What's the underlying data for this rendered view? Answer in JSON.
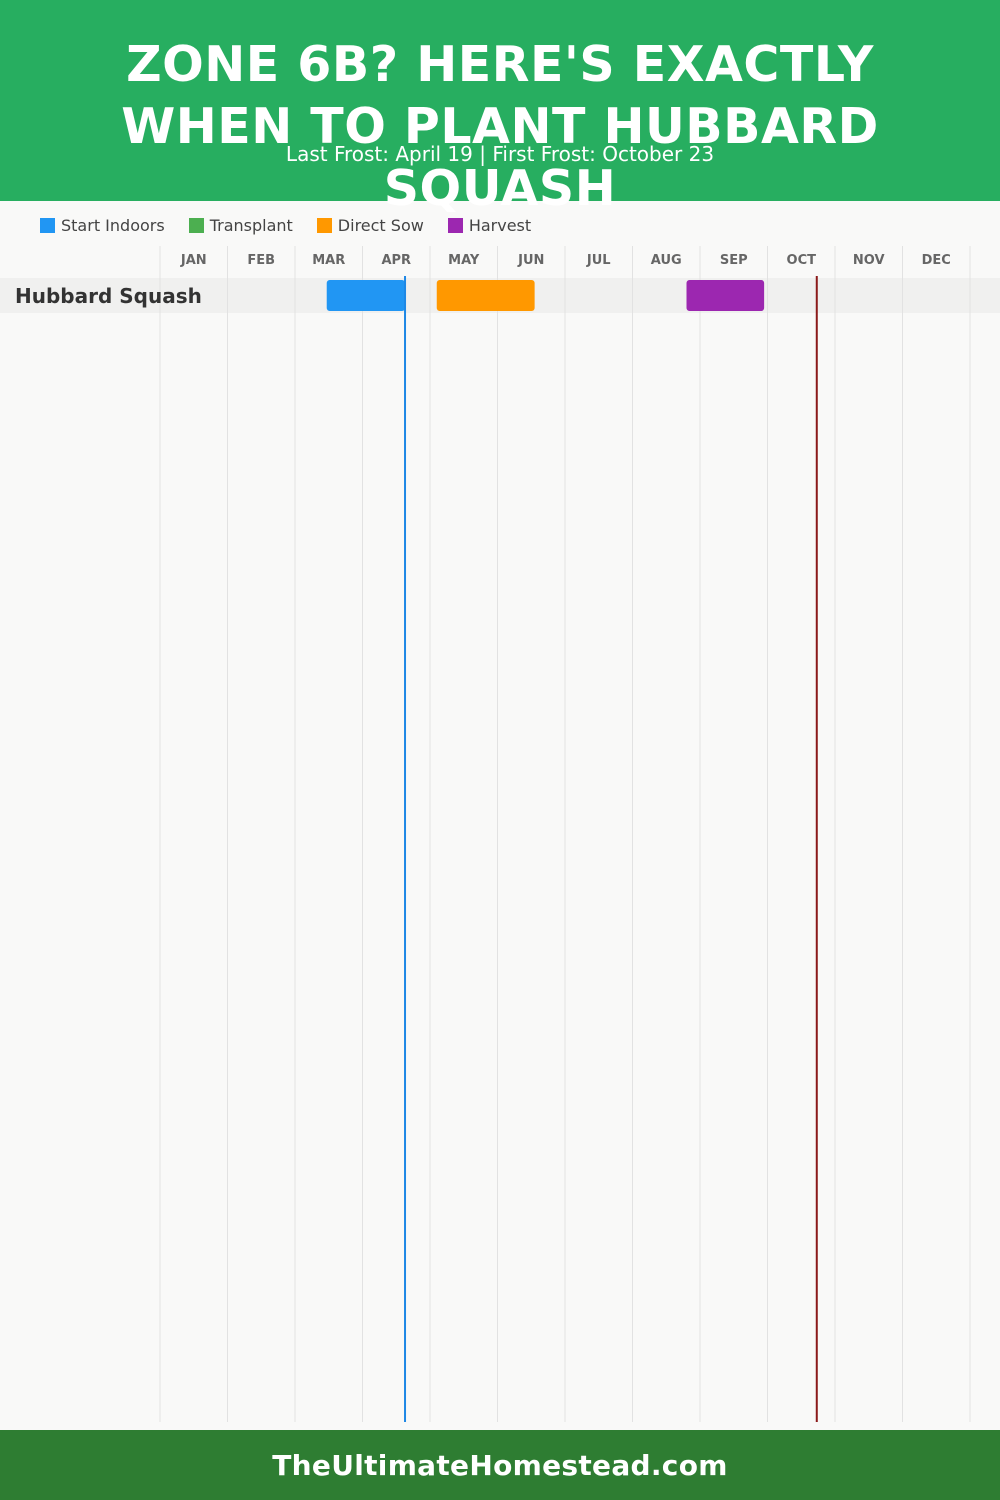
{
  "header": {
    "title_lines": [
      "ZONE 6B? HERE'S EXACTLY",
      "WHEN TO PLANT HUBBARD",
      "SQUASH"
    ],
    "subtitle": "Last Frost: April 19 | First Frost: October 23"
  },
  "footer": {
    "site": "TheUltimateHomestead.com"
  },
  "colors": {
    "header_bg": "#27ae60",
    "footer_bg": "#2e7d32",
    "last_frost_line": "#1e88e5",
    "first_frost_line": "#8b1a1a"
  },
  "chart_data": {
    "type": "gantt",
    "title": "ZONE 6B? HERE'S EXACTLY WHEN TO PLANT HUBBARD SQUASH",
    "subtitle": "Last Frost: April 19 | First Frost: October 23",
    "months": [
      "JAN",
      "FEB",
      "MAR",
      "APR",
      "MAY",
      "JUN",
      "JUL",
      "AUG",
      "SEP",
      "OCT",
      "NOV",
      "DEC"
    ],
    "legend": [
      {
        "name": "Start Indoors",
        "color": "#2196f3"
      },
      {
        "name": "Transplant",
        "color": "#4caf50"
      },
      {
        "name": "Direct Sow",
        "color": "#ff9800"
      },
      {
        "name": "Harvest",
        "color": "#9c27b0"
      }
    ],
    "legend_position": "top-left",
    "rows": [
      {
        "crop": "Hubbard Squash",
        "tasks": [
          {
            "type": "Start Indoors",
            "start": "Mar 8",
            "end": "Apr 19",
            "start_month": 2.47,
            "end_month": 3.63
          },
          {
            "type": "Direct Sow",
            "start": "May 3",
            "end": "Jun 17",
            "start_month": 4.1,
            "end_month": 5.55
          },
          {
            "type": "Harvest",
            "start": "Aug 25",
            "end": "Sep 29",
            "start_month": 7.8,
            "end_month": 8.95
          }
        ]
      }
    ],
    "frost_lines": [
      {
        "label": "Last Frost",
        "date": "April 19",
        "month": 3.63,
        "color": "#1e88e5"
      },
      {
        "label": "First Frost",
        "date": "October 23",
        "month": 9.73,
        "color": "#8b1a1a"
      }
    ],
    "grid": true
  }
}
